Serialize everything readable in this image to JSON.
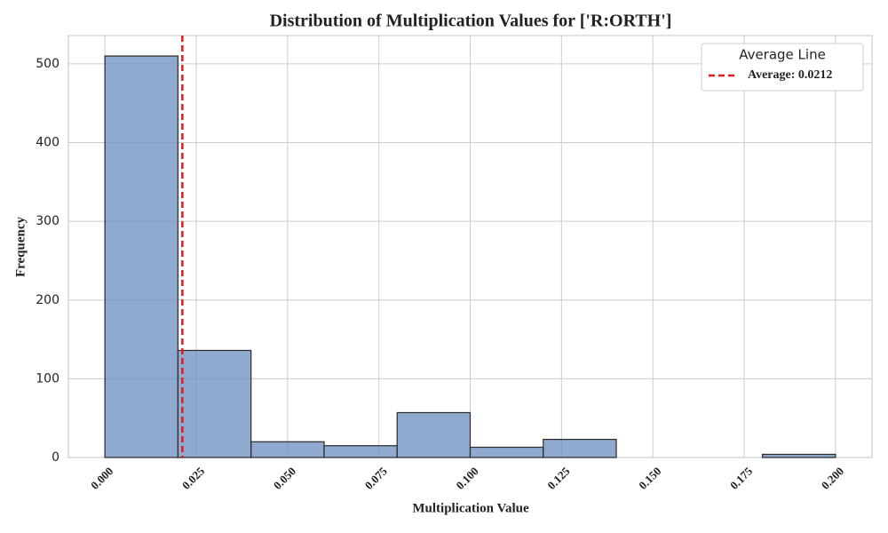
{
  "chart_data": {
    "type": "histogram",
    "title": "Distribution of Multiplication Values for ['R:ORTH']",
    "x_label": "Multiplication Value",
    "y_label": "Frequency",
    "bins": [
      0,
      0.02,
      0.04,
      0.06,
      0.08,
      0.1,
      0.12,
      0.14,
      0.16,
      0.18,
      0.2
    ],
    "values": [
      510,
      136,
      20,
      15,
      57,
      13,
      23,
      0,
      0,
      4
    ],
    "color": "#6b8cbe",
    "edge_color": "#2a2a2a",
    "xlim": [
      -0.01,
      0.21
    ],
    "ylim": [
      0,
      536
    ],
    "xticks": [
      {
        "value": 0,
        "label": "0.000"
      },
      {
        "value": 0.025,
        "label": "0.025"
      },
      {
        "value": 0.05,
        "label": "0.050"
      },
      {
        "value": 0.075,
        "label": "0.075"
      },
      {
        "value": 0.1,
        "label": "0.100"
      },
      {
        "value": 0.125,
        "label": "0.125"
      },
      {
        "value": 0.15,
        "label": "0.150"
      },
      {
        "value": 0.175,
        "label": "0.175"
      },
      {
        "value": 0.2,
        "label": "0.200"
      }
    ],
    "yticks": [
      0,
      100,
      200,
      300,
      400,
      500
    ],
    "grid": true,
    "average": {
      "value": 0.0212,
      "label": "Average: 0.0212",
      "color": "#e31a1c"
    },
    "legend_title": "Average Line",
    "legend_position": "upper right"
  }
}
